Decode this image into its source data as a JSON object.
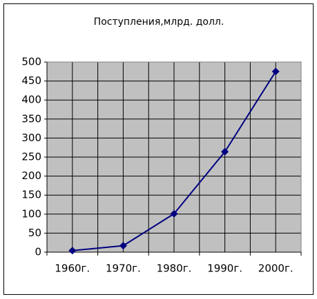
{
  "chart_data": {
    "type": "line",
    "title": "Поступления,млрд. долл.",
    "categories": [
      "1960г.",
      "1970г.",
      "1980г.",
      "1990г.",
      "2000г."
    ],
    "series": [
      {
        "color": "#000080",
        "values": [
          4,
          17,
          101,
          264,
          475
        ]
      }
    ],
    "ylim": [
      0,
      500
    ],
    "yticks": [
      0,
      50,
      100,
      150,
      200,
      250,
      300,
      350,
      400,
      450,
      500
    ],
    "grid": true
  }
}
